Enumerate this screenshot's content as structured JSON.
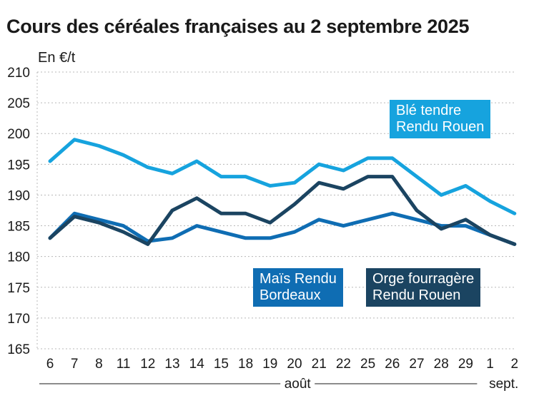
{
  "chart_data": {
    "type": "line",
    "title": "Cours des céréales françaises au 2 septembre 2025",
    "ylabel": "En €/t",
    "ylim": [
      165,
      210
    ],
    "yticks": [
      165,
      170,
      175,
      180,
      185,
      190,
      195,
      200,
      205,
      210
    ],
    "categories": [
      "6",
      "7",
      "8",
      "11",
      "12",
      "13",
      "14",
      "15",
      "18",
      "19",
      "20",
      "21",
      "22",
      "25",
      "26",
      "27",
      "28",
      "29",
      "1",
      "2"
    ],
    "month_labels": [
      {
        "label": "août",
        "from": "6",
        "to": "29"
      },
      {
        "label": "sept.",
        "from": "1",
        "to": "2"
      }
    ],
    "grid": true,
    "series": [
      {
        "name": "Blé tendre Rendu Rouen",
        "name_lines": [
          "Blé tendre",
          "Rendu Rouen"
        ],
        "color": "#16a3de",
        "values": [
          195.5,
          199,
          198,
          196.5,
          194.5,
          193.5,
          195.5,
          193,
          193,
          191.5,
          192,
          195,
          194,
          196,
          196,
          193,
          190,
          191.5,
          189,
          187
        ]
      },
      {
        "name": "Maïs Rendu Bordeaux",
        "name_lines": [
          "Maïs Rendu",
          "Bordeaux"
        ],
        "color": "#0f6db3",
        "values": [
          183,
          187,
          186,
          185,
          182.5,
          183,
          185,
          184,
          183,
          183,
          184,
          186,
          185,
          186,
          187,
          186,
          185,
          185,
          183.5,
          182
        ]
      },
      {
        "name": "Orge fourragère Rendu Rouen",
        "name_lines": [
          "Orge fourragère",
          "Rendu Rouen"
        ],
        "color": "#1b4461",
        "values": [
          183,
          186.5,
          185.5,
          184,
          182,
          187.5,
          189.5,
          187,
          187,
          185.5,
          188.5,
          192,
          191,
          193,
          193,
          187.5,
          184.5,
          186,
          183.5,
          182
        ]
      }
    ]
  }
}
